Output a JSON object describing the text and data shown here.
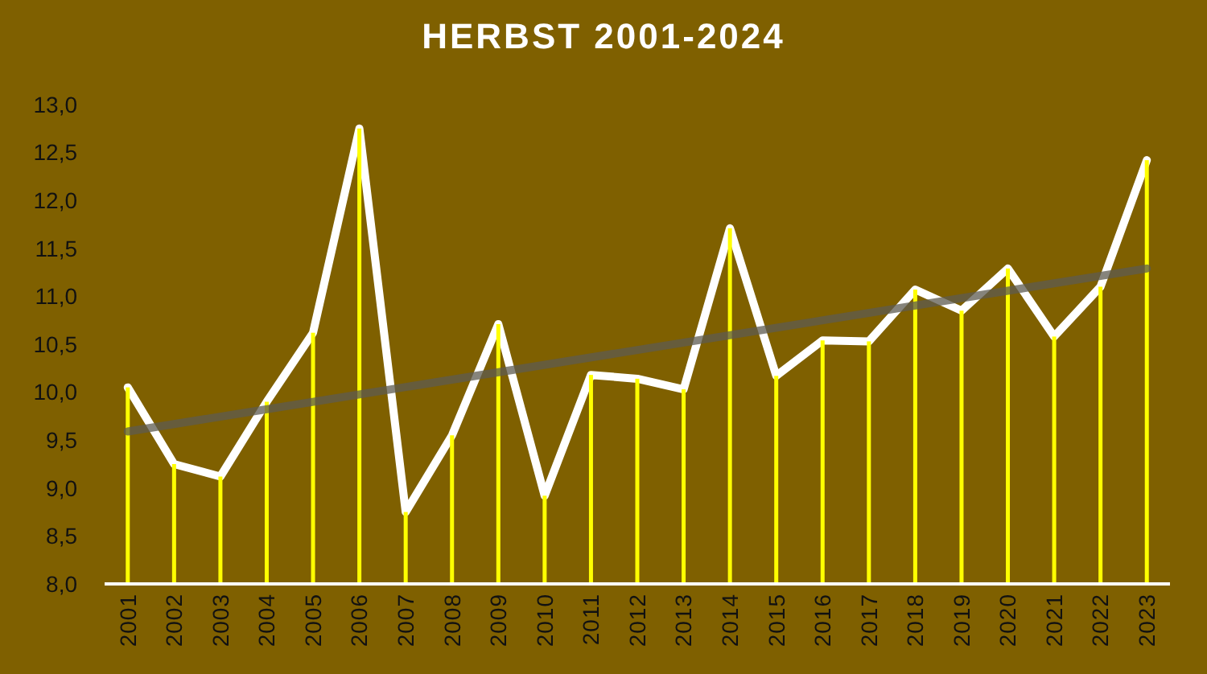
{
  "chart_data": {
    "type": "line",
    "title": "HERBST 2001-2024",
    "x": [
      2001,
      2002,
      2003,
      2004,
      2005,
      2006,
      2007,
      2008,
      2009,
      2010,
      2011,
      2012,
      2013,
      2014,
      2015,
      2016,
      2017,
      2018,
      2019,
      2020,
      2021,
      2022,
      2023
    ],
    "series": [
      {
        "color": "#ffffff",
        "values": [
          10.05,
          9.25,
          9.12,
          9.9,
          10.62,
          12.75,
          8.75,
          9.55,
          10.71,
          8.92,
          10.18,
          10.14,
          10.03,
          11.71,
          10.17,
          10.54,
          10.53,
          11.07,
          10.85,
          11.29,
          10.58,
          11.1,
          12.42
        ]
      },
      {
        "type": "bar",
        "color": "#ffff00",
        "values": [
          10.05,
          9.25,
          9.12,
          9.9,
          10.62,
          12.75,
          8.75,
          9.55,
          10.71,
          8.92,
          10.18,
          10.14,
          10.03,
          11.71,
          10.17,
          10.54,
          10.53,
          11.07,
          10.85,
          11.29,
          10.58,
          11.1,
          12.42
        ]
      },
      {
        "color": "#5e5b50",
        "x": [
          2001,
          2023
        ],
        "values": [
          9.59,
          11.29
        ]
      }
    ],
    "xlim": [
      2000.5,
      2023.5
    ],
    "xticks": [
      2001,
      2002,
      2003,
      2004,
      2005,
      2006,
      2007,
      2008,
      2009,
      2010,
      2011,
      2012,
      2013,
      2014,
      2015,
      2016,
      2017,
      2018,
      2019,
      2020,
      2021,
      2022,
      2023
    ],
    "ylim": [
      8,
      13
    ],
    "yticks": [
      {
        "value": 8,
        "label": "8,0"
      },
      {
        "value": 8.5,
        "label": "8,5"
      },
      {
        "value": 9,
        "label": "9,0"
      },
      {
        "value": 9.5,
        "label": "9,5"
      },
      {
        "value": 10,
        "label": "10,0"
      },
      {
        "value": 10.5,
        "label": "10,5"
      },
      {
        "value": 11,
        "label": "11,0"
      },
      {
        "value": 11.5,
        "label": "11,5"
      },
      {
        "value": 12,
        "label": "12,0"
      },
      {
        "value": 12.5,
        "label": "12,5"
      },
      {
        "value": 13,
        "label": "13,0"
      }
    ]
  }
}
